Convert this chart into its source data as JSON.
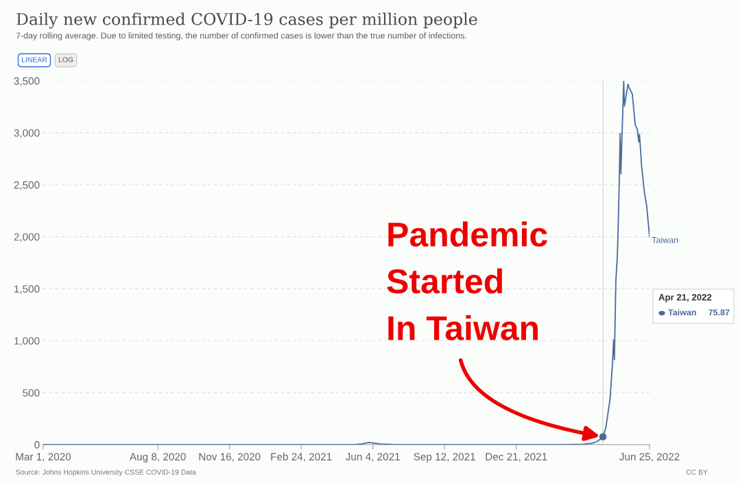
{
  "chart_data": {
    "type": "line",
    "title": "Daily new confirmed COVID-19 cases per million people",
    "subtitle": "7-day rolling average. Due to limited testing, the number of confirmed cases is lower than the true number of infections.",
    "series": [
      {
        "name": "Taiwan",
        "color": "#4c6a9c",
        "x": [
          "2020-03-01",
          "2020-06-01",
          "2020-12-01",
          "2021-05-10",
          "2021-05-20",
          "2021-05-29",
          "2021-06-05",
          "2021-06-15",
          "2021-07-01",
          "2021-08-01",
          "2021-12-01",
          "2022-03-01",
          "2022-03-25",
          "2022-04-05",
          "2022-04-12",
          "2022-04-17",
          "2022-04-21",
          "2022-04-25",
          "2022-04-28",
          "2022-05-01",
          "2022-05-04",
          "2022-05-06",
          "2022-05-07",
          "2022-05-09",
          "2022-05-11",
          "2022-05-12",
          "2022-05-14",
          "2022-05-15",
          "2022-05-16",
          "2022-05-20",
          "2022-05-21",
          "2022-05-26",
          "2022-05-27",
          "2022-06-01",
          "2022-06-05",
          "2022-06-08",
          "2022-06-10",
          "2022-06-11",
          "2022-06-14",
          "2022-06-18",
          "2022-06-21",
          "2022-06-25"
        ],
        "values": [
          0,
          0,
          0,
          0,
          8,
          20,
          15,
          6,
          2,
          0,
          0,
          1,
          4,
          12,
          28,
          50,
          75.87,
          160,
          300,
          441,
          750,
          1008,
          817,
          1569,
          1806,
          2017,
          2606,
          2995,
          2606,
          3500,
          3257,
          3467,
          3441,
          3372,
          3079,
          3033,
          2913,
          2986,
          2676,
          2419,
          2300,
          2000
        ]
      },
      {
        "type": "scatter",
        "color": "#4c6a9c",
        "marker": "circle",
        "x": [
          "2022-04-21"
        ],
        "values": [
          75.87
        ]
      }
    ],
    "xlim": [
      "2020-03-01",
      "2022-06-25"
    ],
    "xticks": [
      {
        "value": "2020-03-01",
        "label": "Mar 1, 2020"
      },
      {
        "value": "2020-08-08",
        "label": "Aug 8, 2020"
      },
      {
        "value": "2020-11-16",
        "label": "Nov 16, 2020"
      },
      {
        "value": "2021-02-24",
        "label": "Feb 24, 2021"
      },
      {
        "value": "2021-06-04",
        "label": "Jun 4, 2021"
      },
      {
        "value": "2021-09-12",
        "label": "Sep 12, 2021"
      },
      {
        "value": "2021-12-21",
        "label": "Dec 21, 2021"
      },
      {
        "value": "2022-06-25",
        "label": "Jun 25, 2022"
      }
    ],
    "ylim": [
      0,
      3500
    ],
    "yticks": [
      0,
      500,
      {
        "value": 1000,
        "label": "1,000"
      },
      {
        "value": 1500,
        "label": "1,500"
      },
      {
        "value": 2000,
        "label": "2,000"
      },
      {
        "value": 2500,
        "label": "2,500"
      },
      {
        "value": 3000,
        "label": "3,000"
      },
      {
        "value": 3500,
        "label": "3,500"
      }
    ],
    "grid": "y",
    "ref_lines": [
      {
        "axis": "x",
        "value": "2022-04-21",
        "color": "#d8d8d8"
      }
    ],
    "annotations": [
      "Pandemic\nStarted\nIn Taiwan",
      "Apr 21, 2022",
      "Taiwan",
      "75.87",
      "LINEAR",
      "LOG",
      "Source: Johns Hopkins University CSSE COVID-19 Data",
      "CC BY"
    ]
  }
}
